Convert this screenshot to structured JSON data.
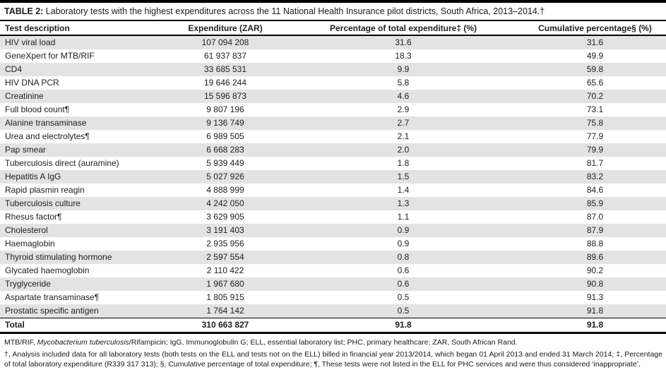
{
  "title": {
    "label": "TABLE 2:",
    "text": " Laboratory tests with the highest expenditures across the 11 National Health Insurance pilot districts, South Africa, 2013–2014.†"
  },
  "table": {
    "headers": [
      "Test description",
      "Expenditure (ZAR)",
      "Percentage of total expenditure‡ (%)",
      "Cumulative percentage§ (%)"
    ],
    "rows": [
      {
        "test": "HIV viral load",
        "expenditure": "107 094 208",
        "pct": "31.6",
        "cum": "31.6"
      },
      {
        "test": "GeneXpert for MTB/RIF",
        "expenditure": "61 937 837",
        "pct": "18.3",
        "cum": "49.9"
      },
      {
        "test": "CD4",
        "expenditure": "33 685 531",
        "pct": "9.9",
        "cum": "59.8"
      },
      {
        "test": "HIV DNA PCR",
        "expenditure": "19 646 244",
        "pct": "5.8",
        "cum": "65.6"
      },
      {
        "test": "Creatinine",
        "expenditure": "15 596 873",
        "pct": "4.6",
        "cum": "70.2"
      },
      {
        "test": "Full blood count¶",
        "expenditure": "9 807 196",
        "pct": "2.9",
        "cum": "73.1"
      },
      {
        "test": "Alanine transaminase",
        "expenditure": "9 136 749",
        "pct": "2.7",
        "cum": "75.8"
      },
      {
        "test": "Urea and electrolytes¶",
        "expenditure": "6 989 505",
        "pct": "2.1",
        "cum": "77.9"
      },
      {
        "test": "Pap smear",
        "expenditure": "6 668 283",
        "pct": "2.0",
        "cum": "79.9"
      },
      {
        "test": "Tuberculosis direct (auramine)",
        "expenditure": "5 939 449",
        "pct": "1.8",
        "cum": "81.7"
      },
      {
        "test": "Hepatitis A IgG",
        "expenditure": "5 027 926",
        "pct": "1.5",
        "cum": "83.2"
      },
      {
        "test": "Rapid plasmin reagin",
        "expenditure": "4 888 999",
        "pct": "1.4",
        "cum": "84.6"
      },
      {
        "test": "Tuberculosis culture",
        "expenditure": "4 242 050",
        "pct": "1.3",
        "cum": "85.9"
      },
      {
        "test": "Rhesus factor¶",
        "expenditure": "3 629 905",
        "pct": "1.1",
        "cum": "87.0"
      },
      {
        "test": "Cholesterol",
        "expenditure": "3 191 403",
        "pct": "0.9",
        "cum": "87.9"
      },
      {
        "test": "Haemaglobin",
        "expenditure": "2 935 956",
        "pct": "0.9",
        "cum": "88.8"
      },
      {
        "test": "Thyroid stimulating hormone",
        "expenditure": "2 597 554",
        "pct": "0.8",
        "cum": "89.6"
      },
      {
        "test": "Glycated haemoglobin",
        "expenditure": "2 110 422",
        "pct": "0.6",
        "cum": "90.2"
      },
      {
        "test": "Tryglyceride",
        "expenditure": "1 967 680",
        "pct": "0.6",
        "cum": "90.8"
      },
      {
        "test": "Aspartate transaminase¶",
        "expenditure": "1 805 915",
        "pct": "0.5",
        "cum": "91.3"
      },
      {
        "test": "Prostatic specific antigen",
        "expenditure": "1 764 142",
        "pct": "0.5",
        "cum": "91.8"
      }
    ],
    "total": {
      "label": "Total",
      "expenditure": "310 663 827",
      "pct": "91.8",
      "cum": "91.8"
    }
  },
  "footnotes": {
    "abbrev_prefix": "MTB/RIF, ",
    "abbrev_italic": "Mycobacterium tuberculosis",
    "abbrev_suffix": "/Rifampicin; IgG, Immunoglobulin G; ELL, essential laboratory list; PHC, primary healthcare; ZAR, South African Rand.",
    "notes": "†, Analysis included data for all laboratory tests (both tests on the ELL and tests not on the ELL) billed in financial year 2013/2014, which began 01 April 2013 and ended 31 March 2014; ‡, Percentage of total laboratory expenditure (R339 317 313); §, Cumulative percentage of total expenditure; ¶, These tests were not listed in the ELL for PHC services and were thus considered ‘inappropriate’."
  },
  "colors": {
    "stripe": "#e3e3e3",
    "rule": "#000000",
    "text": "#1f1f1f"
  }
}
